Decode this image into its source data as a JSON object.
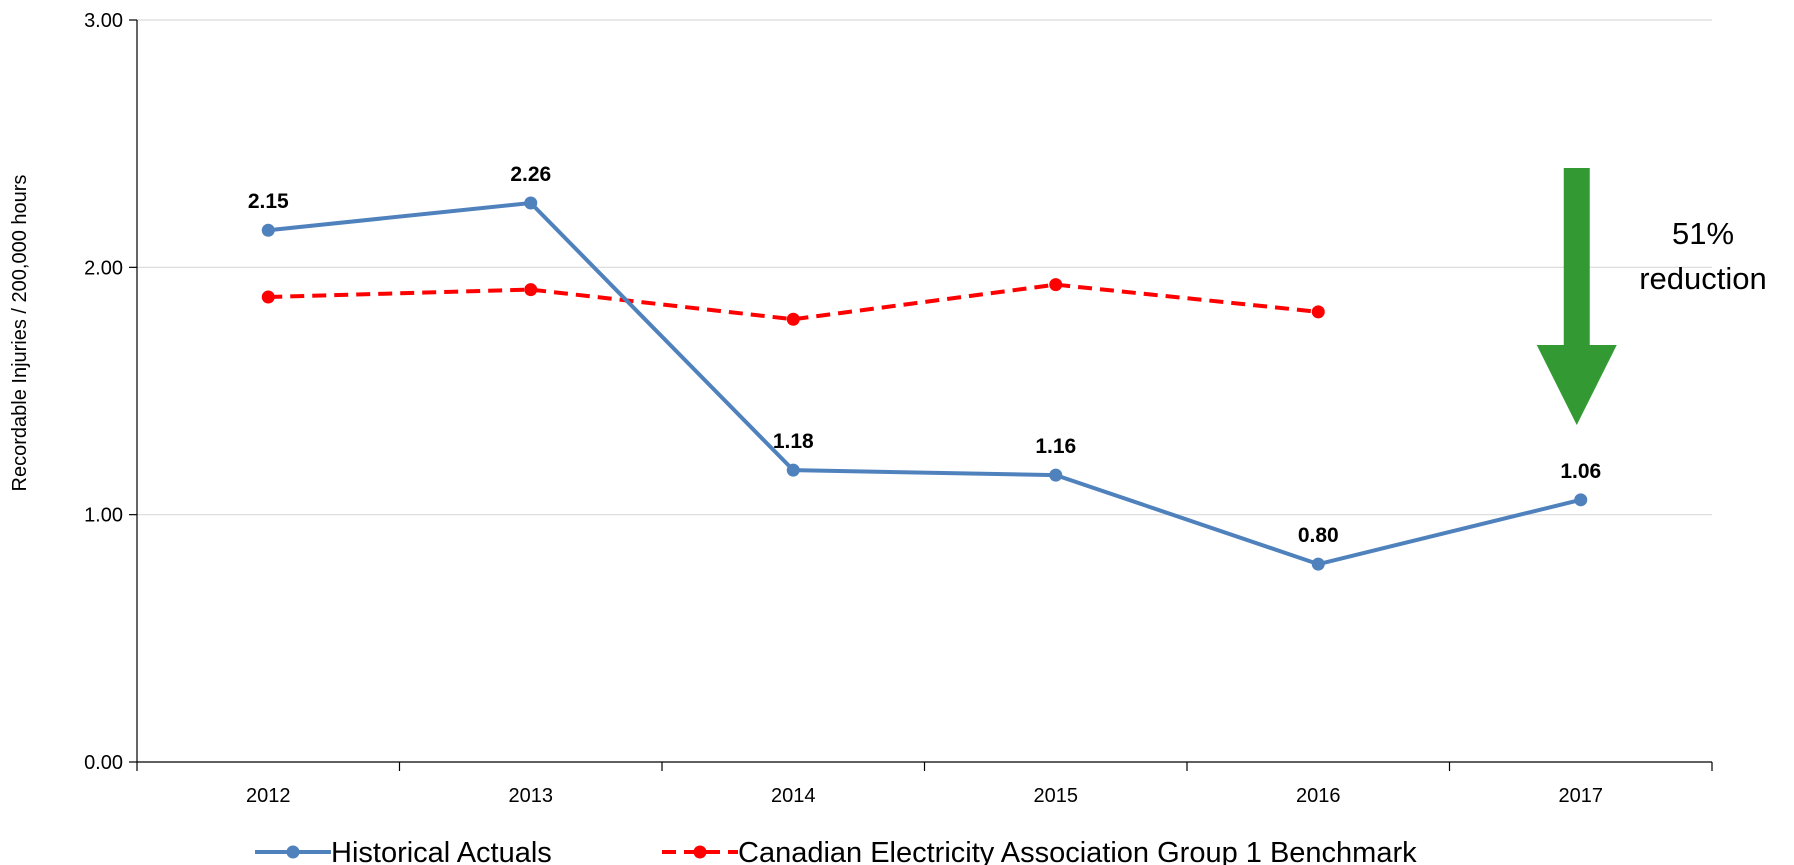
{
  "chart_data": {
    "type": "line",
    "title": "",
    "xlabel": "",
    "ylabel": "Recordable Injuries / 200,000 hours",
    "ylim": [
      0,
      3
    ],
    "y_ticks": [
      "0.00",
      "1.00",
      "2.00",
      "3.00"
    ],
    "y_tick_values": [
      0,
      1,
      2,
      3
    ],
    "categories": [
      "2012",
      "2013",
      "2014",
      "2015",
      "2016",
      "2017"
    ],
    "grid": "horizontal",
    "legend_position": "bottom",
    "series": [
      {
        "name": "Historical Actuals",
        "color": "#4f81bd",
        "line_style": "solid",
        "values": [
          2.15,
          2.26,
          1.18,
          1.16,
          0.8,
          1.06
        ],
        "data_labels": [
          "2.15",
          "2.26",
          "1.18",
          "1.16",
          "0.80",
          "1.06"
        ]
      },
      {
        "name": "Canadian Electricity Association Group 1 Benchmark",
        "color": "#ff0000",
        "line_style": "dashed",
        "values": [
          1.88,
          1.91,
          1.79,
          1.93,
          1.82,
          null
        ]
      }
    ],
    "annotation": {
      "line1": "51%",
      "line2": "reduction",
      "arrow_color": "#339933",
      "arrow_direction": "down"
    }
  }
}
